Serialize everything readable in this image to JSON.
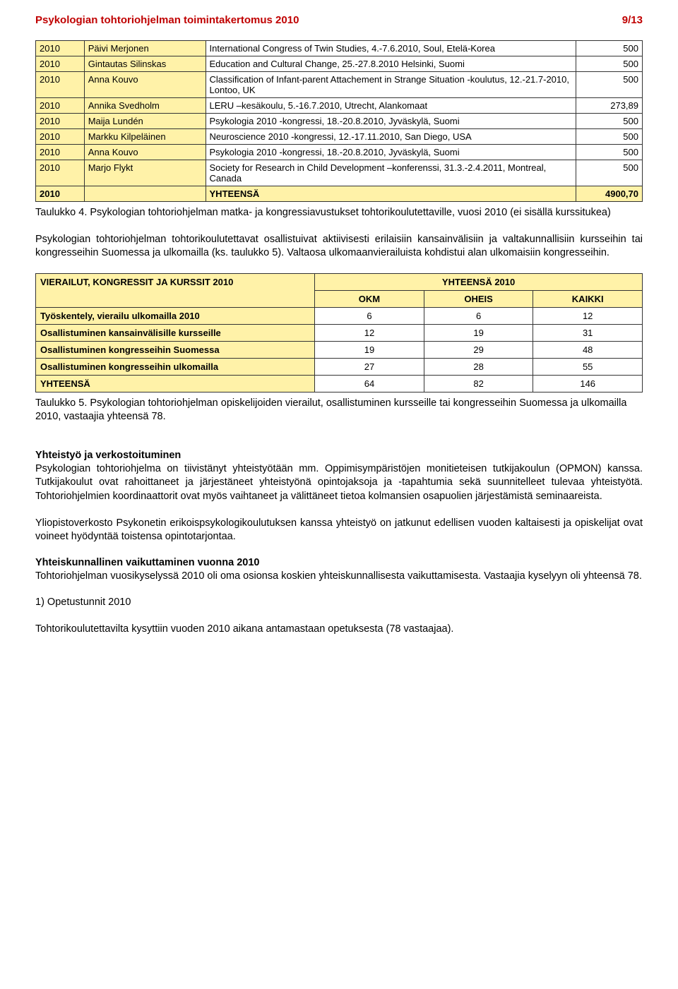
{
  "header": {
    "title": "Psykologian tohtoriohjelman toimintakertomus 2010",
    "page": "9/13"
  },
  "table1": {
    "rows": [
      {
        "y": "2010",
        "n": "Päivi Merjonen",
        "d": "International Congress of Twin Studies, 4.-7.6.2010, Soul, Etelä-Korea",
        "a": "500"
      },
      {
        "y": "2010",
        "n": "Gintautas Silinskas",
        "d": "Education and Cultural Change, 25.-27.8.2010 Helsinki, Suomi",
        "a": "500"
      },
      {
        "y": "2010",
        "n": "Anna Kouvo",
        "d": "Classification of Infant-parent Attachement in Strange Situation -koulutus, 12.-21.7-2010, Lontoo, UK",
        "a": "500"
      },
      {
        "y": "2010",
        "n": "Annika Svedholm",
        "d": "LERU –kesäkoulu, 5.-16.7.2010, Utrecht, Alankomaat",
        "a": "273,89"
      },
      {
        "y": "2010",
        "n": "Maija Lundén",
        "d": "Psykologia 2010 -kongressi, 18.-20.8.2010, Jyväskylä, Suomi",
        "a": "500"
      },
      {
        "y": "2010",
        "n": "Markku Kilpeläinen",
        "d": "Neuroscience 2010 -kongressi, 12.-17.11.2010, San Diego, USA",
        "a": "500"
      },
      {
        "y": "2010",
        "n": "Anna Kouvo",
        "d": "Psykologia 2010 -kongressi, 18.-20.8.2010, Jyväskylä, Suomi",
        "a": "500"
      },
      {
        "y": "2010",
        "n": "Marjo Flykt",
        "d": "Society for Research in Child Development –konferenssi, 31.3.-2.4.2011, Montreal, Canada",
        "a": "500"
      }
    ],
    "total": {
      "y": "2010",
      "label": "YHTEENSÄ",
      "a": "4900,70"
    }
  },
  "caption1": "Taulukko 4. Psykologian tohtoriohjelman matka- ja kongressiavustukset tohtorikoulutettaville, vuosi 2010 (ei sisällä kurssitukea)",
  "para1": "Psykologian tohtoriohjelman tohtorikoulutettavat osallistuivat aktiivisesti erilaisiin kansainvälisiin ja valtakunnallisiin kursseihin tai kongresseihin Suomessa ja ulkomailla (ks. taulukko 5). Valtaosa ulkomaanvierailuista kohdistui alan ulkomaisiin kongresseihin.",
  "stats": {
    "title1": "VIERAILUT, KONGRESSIT JA KURSSIT 2010",
    "title2": "YHTEENSÄ 2010",
    "cols": {
      "okm": "OKM",
      "oheis": "OHEIS",
      "kaikki": "KAIKKI"
    },
    "rows": [
      {
        "l": "Työskentely, vierailu ulkomailla 2010",
        "a": "6",
        "b": "6",
        "c": "12"
      },
      {
        "l": "Osallistuminen kansainvälisille kursseille",
        "a": "12",
        "b": "19",
        "c": "31"
      },
      {
        "l": "Osallistuminen kongresseihin Suomessa",
        "a": "19",
        "b": "29",
        "c": "48"
      },
      {
        "l": "Osallistuminen kongresseihin ulkomailla",
        "a": "27",
        "b": "28",
        "c": "55"
      },
      {
        "l": "YHTEENSÄ",
        "a": "64",
        "b": "82",
        "c": "146"
      }
    ]
  },
  "caption2": "Taulukko 5. Psykologian tohtoriohjelman opiskelijoiden vierailut, osallistuminen kursseille tai kongresseihin Suomessa ja ulkomailla 2010, vastaajia yhteensä 78.",
  "sec1": {
    "h": "Yhteistyö ja verkostoituminen",
    "p1": "Psykologian tohtoriohjelma on tiivistänyt yhteistyötään mm. Oppimisympäristöjen monitieteisen tutkijakoulun (OPMON) kanssa. Tutkijakoulut ovat rahoittaneet ja järjestäneet yhteistyönä opintojaksoja ja -tapahtumia sekä suunnitelleet tulevaa yhteistyötä. Tohtoriohjelmien koordinaattorit ovat myös vaihtaneet ja välittäneet tietoa kolmansien osapuolien järjestämistä seminaareista.",
    "p2": "Yliopistoverkosto Psykonetin erikoispsykologikoulutuksen kanssa yhteistyö on jatkunut edellisen vuoden kaltaisesti ja opiskelijat ovat voineet hyödyntää toistensa opintotarjontaa."
  },
  "sec2": {
    "h": "Yhteiskunnallinen vaikuttaminen vuonna 2010",
    "p": "Tohtoriohjelman vuosikyselyssä 2010 oli oma osionsa koskien yhteiskunnallisesta vaikuttamisesta. Vastaajia kyselyyn oli yhteensä 78."
  },
  "sec3": {
    "h": "1) Opetustunnit 2010",
    "p": "Tohtorikoulutettavilta kysyttiin vuoden 2010 aikana antamastaan opetuksesta (78 vastaajaa)."
  }
}
